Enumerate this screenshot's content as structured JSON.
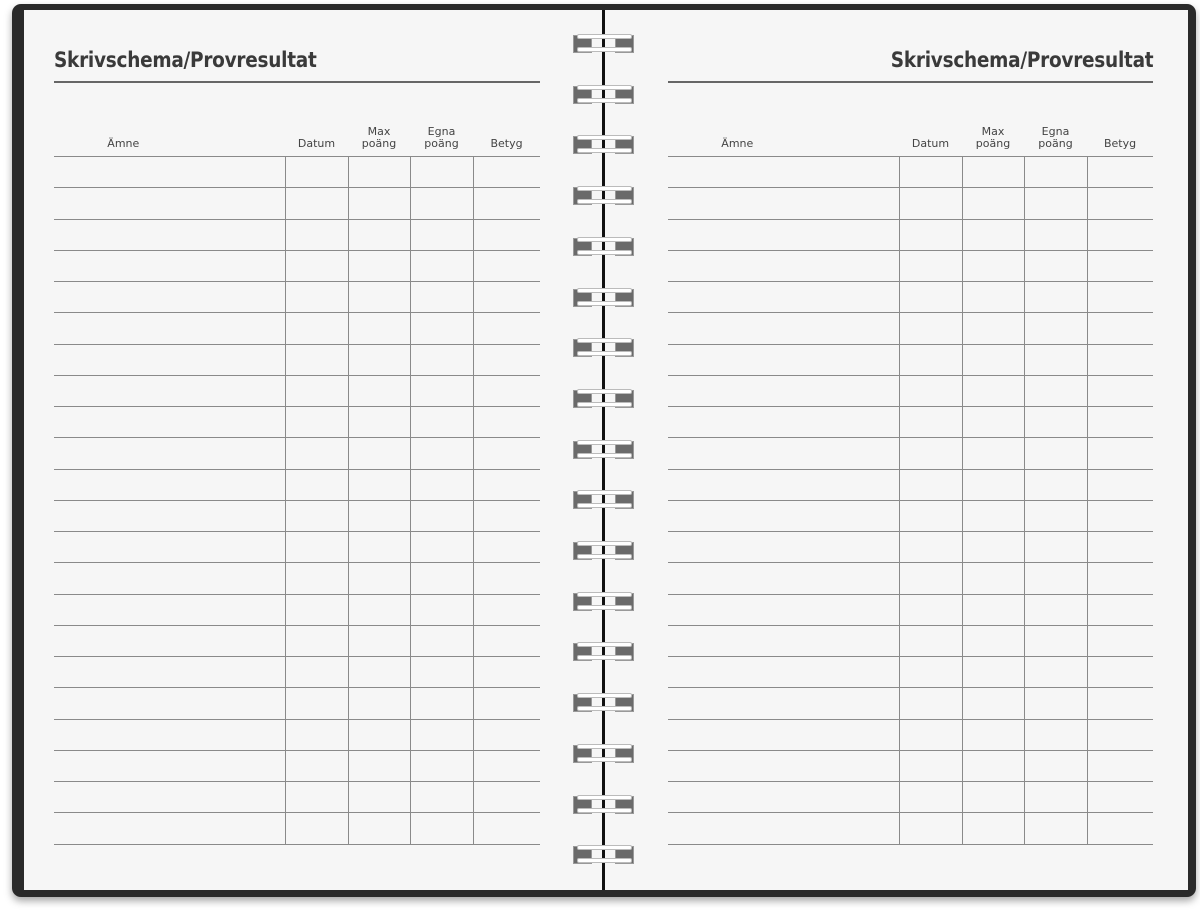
{
  "left_page": {
    "title": "Skrivschema/Provresultat",
    "columns": [
      {
        "label": "Ämne"
      },
      {
        "label": "Datum"
      },
      {
        "label": "Max\npoäng"
      },
      {
        "label": "Egna\npoäng"
      },
      {
        "label": "Betyg"
      }
    ],
    "row_count": 22
  },
  "right_page": {
    "title": "Skrivschema/Provresultat",
    "columns": [
      {
        "label": "Ämne"
      },
      {
        "label": "Datum"
      },
      {
        "label": "Max\npoäng"
      },
      {
        "label": "Egna\npoäng"
      },
      {
        "label": "Betyg"
      }
    ],
    "row_count": 22
  },
  "spiral_ring_count": 17,
  "colors": {
    "cover": "#2a2a2a",
    "paper": "#f6f6f6",
    "text": "#3a3a3a",
    "lines": "#8a8a8a"
  }
}
